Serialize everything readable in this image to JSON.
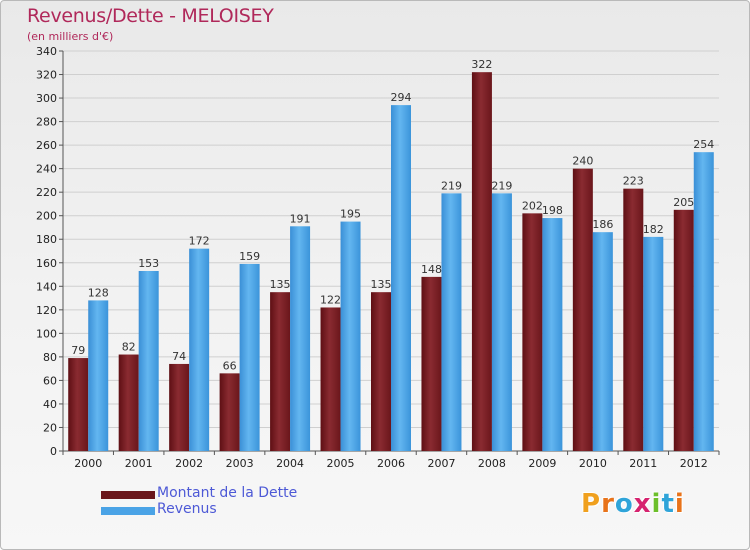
{
  "chart_data": {
    "type": "bar",
    "title": "Revenus/Dette - MELOISEY",
    "subtitle": "(en milliers d'€)",
    "categories": [
      "2000",
      "2001",
      "2002",
      "2003",
      "2004",
      "2005",
      "2006",
      "2007",
      "2008",
      "2009",
      "2010",
      "2011",
      "2012"
    ],
    "series": [
      {
        "name": "Montant de la Dette",
        "color": "#7a1f24",
        "values": [
          79,
          82,
          74,
          66,
          135,
          122,
          135,
          148,
          322,
          202,
          240,
          223,
          205
        ]
      },
      {
        "name": "Revenus",
        "color": "#4aa3e6",
        "values": [
          128,
          153,
          172,
          159,
          191,
          195,
          294,
          219,
          219,
          198,
          186,
          182,
          254
        ]
      }
    ],
    "ylim": [
      0,
      340
    ],
    "yticks": [
      0,
      20,
      40,
      60,
      80,
      100,
      120,
      140,
      160,
      180,
      200,
      220,
      240,
      260,
      280,
      300,
      320,
      340
    ],
    "grid": true,
    "legend_position": "bottom-left"
  },
  "logo": {
    "text": "Proxiti"
  }
}
